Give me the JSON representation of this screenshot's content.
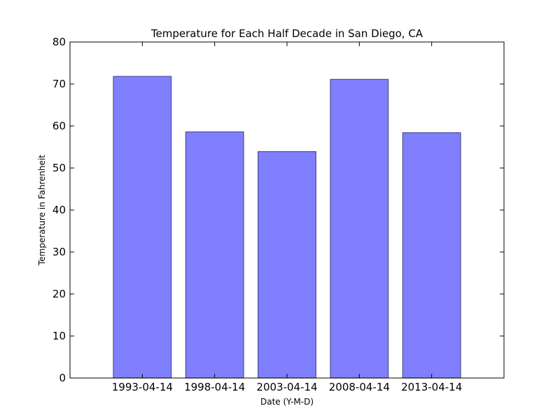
{
  "chart_data": {
    "type": "bar",
    "title": "Temperature for Each Half Decade in San Diego, CA",
    "xlabel": "Date (Y-M-D)",
    "ylabel": "Temperature in Fahrenheit",
    "categories": [
      "1993-04-14",
      "1998-04-14",
      "2003-04-14",
      "2008-04-14",
      "2013-04-14"
    ],
    "values": [
      71.8,
      58.6,
      53.9,
      71.1,
      58.4
    ],
    "ylim": [
      0,
      80
    ],
    "yticks": [
      0,
      10,
      20,
      30,
      40,
      50,
      60,
      70,
      80
    ],
    "grid": false,
    "bar_color": "#8080ff",
    "bar_edge_color": "#4d4d99"
  }
}
